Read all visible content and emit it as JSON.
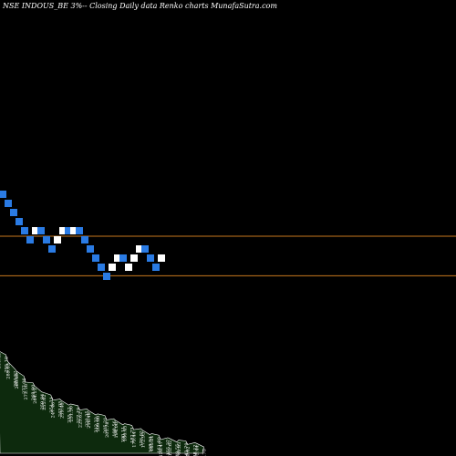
{
  "chart_data": {
    "type": "renko",
    "title": "NSE INDOUS_BE 3%-- Closing Daily data  Renko  charts MunafaSutra.com",
    "colors": {
      "background": "#000000",
      "up_brick": "#ffffff",
      "down_brick": "#2a7be4",
      "reference_line": "#c8781e",
      "volume_area": "#0d2a0d",
      "volume_line": "#ffffff"
    },
    "reference_lines": [
      213.0,
      200.0
    ],
    "bricks": [
      {
        "dir": "down",
        "top": 228.0
      },
      {
        "dir": "down",
        "top": 225.0
      },
      {
        "dir": "down",
        "top": 222.0
      },
      {
        "dir": "down",
        "top": 219.0
      },
      {
        "dir": "down",
        "top": 216.0
      },
      {
        "dir": "down",
        "top": 213.0
      },
      {
        "dir": "up",
        "top": 216.0
      },
      {
        "dir": "down",
        "top": 216.0
      },
      {
        "dir": "down",
        "top": 213.0
      },
      {
        "dir": "down",
        "top": 210.0
      },
      {
        "dir": "up",
        "top": 213.0
      },
      {
        "dir": "up",
        "top": 216.0
      },
      {
        "dir": "down",
        "top": 216.0
      },
      {
        "dir": "up",
        "top": 216.0
      },
      {
        "dir": "down",
        "top": 216.0
      },
      {
        "dir": "down",
        "top": 213.0
      },
      {
        "dir": "down",
        "top": 210.0
      },
      {
        "dir": "down",
        "top": 207.0
      },
      {
        "dir": "down",
        "top": 204.0
      },
      {
        "dir": "down",
        "top": 201.0
      },
      {
        "dir": "up",
        "top": 204.0
      },
      {
        "dir": "up",
        "top": 207.0
      },
      {
        "dir": "down",
        "top": 207.0
      },
      {
        "dir": "up",
        "top": 204.0
      },
      {
        "dir": "up",
        "top": 207.0
      },
      {
        "dir": "up",
        "top": 210.0
      },
      {
        "dir": "down",
        "top": 210.0
      },
      {
        "dir": "down",
        "top": 207.0
      },
      {
        "dir": "down",
        "top": 204.0
      },
      {
        "dir": "up",
        "top": 207.0
      }
    ],
    "volume_labels": [
      "300.45",
      "295.10",
      "289.63",
      "284.52",
      "280.89",
      "277.06",
      "272.16",
      "268.90",
      "264.13",
      "259.84",
      "255.62",
      "251.31",
      "247.46",
      "243.05",
      "239.48",
      "235.12",
      "231.30",
      "227.19",
      "223.62",
      "220.35",
      "216.48",
      "212.22",
      "209.60",
      "205.31",
      "201.78",
      "198.56",
      "194.06",
      "190.11",
      "186.45",
      "182.73",
      "179.44",
      "176.02",
      "172.93",
      "168.84",
      "165.21",
      "161.90",
      "158.47",
      "155.37",
      "152.62",
      "149.55",
      "146.83",
      "143.79",
      "140.62",
      "138.12",
      "135.44",
      "132.70"
    ],
    "volume": [
      128,
      120,
      112,
      106,
      100,
      94,
      90,
      86,
      82,
      78,
      74,
      71,
      68,
      66,
      64,
      62,
      60,
      58,
      56,
      54,
      52,
      50,
      48,
      46,
      44,
      42,
      40,
      38,
      36,
      34,
      32,
      30,
      28,
      26,
      24,
      22,
      20,
      19,
      18,
      17,
      16,
      15,
      14,
      13,
      12,
      11
    ]
  }
}
